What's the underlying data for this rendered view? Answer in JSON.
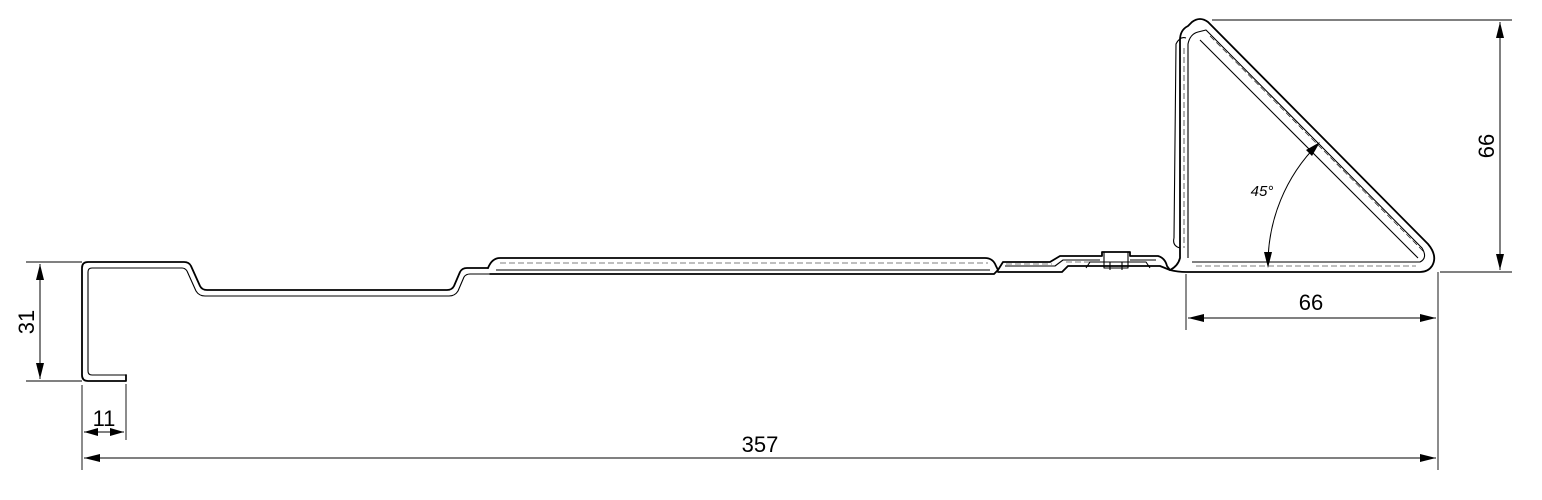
{
  "dimensions": {
    "total_width": "357",
    "left_height": "31",
    "left_lip": "11",
    "triangle_height": "66",
    "triangle_width": "66",
    "angle": "45°"
  }
}
